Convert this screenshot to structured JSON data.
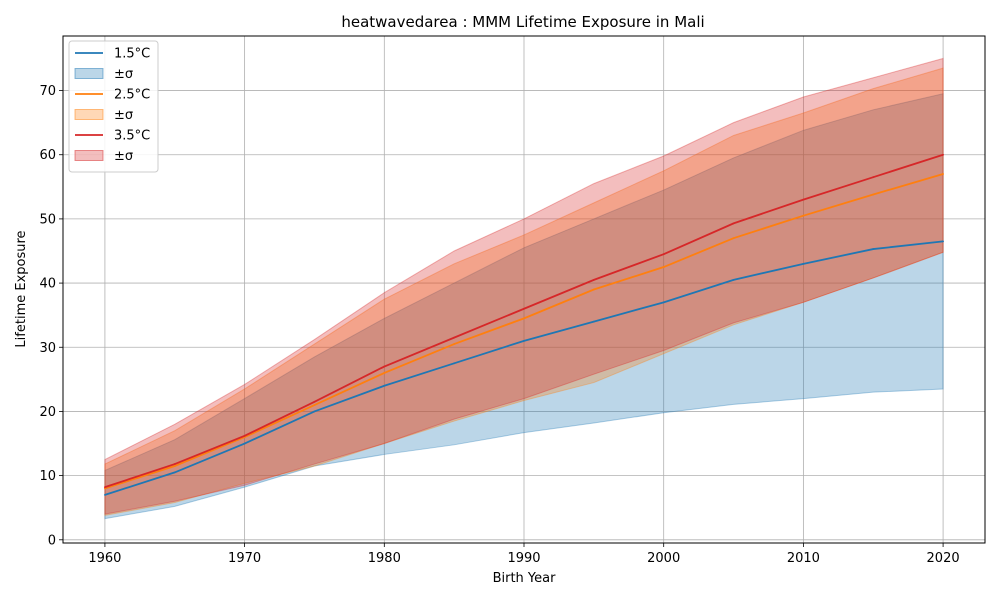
{
  "chart_data": {
    "type": "area",
    "title": "heatwavedarea : MMM Lifetime Exposure in Mali",
    "xlabel": "Birth Year",
    "ylabel": "Lifetime Exposure",
    "xlim": [
      1957,
      2023
    ],
    "ylim": [
      -0.5,
      78.5
    ],
    "xticks": [
      1960,
      1970,
      1980,
      1990,
      2000,
      2010,
      2020
    ],
    "yticks": [
      0,
      10,
      20,
      30,
      40,
      50,
      60,
      70
    ],
    "grid": true,
    "legend_position": "top-left",
    "x": [
      1960,
      1965,
      1970,
      1975,
      1980,
      1985,
      1990,
      1995,
      2000,
      2005,
      2010,
      2015,
      2020
    ],
    "series": [
      {
        "name": "1.5°C",
        "band_label": "±σ",
        "color": "#1f77b4",
        "band_color": "#1f77b4",
        "values": [
          7.0,
          10.5,
          15.0,
          20.0,
          24.0,
          27.5,
          31.0,
          34.0,
          37.0,
          40.5,
          43.0,
          45.3,
          46.5
        ],
        "lower": [
          3.3,
          5.2,
          8.2,
          11.5,
          13.3,
          14.8,
          16.7,
          18.2,
          19.8,
          21.1,
          22.0,
          23.0,
          23.5
        ],
        "upper": [
          10.8,
          15.6,
          22.0,
          28.5,
          34.5,
          40.0,
          45.5,
          50.0,
          54.5,
          59.5,
          63.8,
          67.0,
          69.5
        ]
      },
      {
        "name": "2.5°C",
        "band_label": "±σ",
        "color": "#ff7f0e",
        "band_color": "#ff7f0e",
        "values": [
          8.0,
          11.5,
          16.0,
          21.0,
          26.0,
          30.5,
          34.5,
          39.0,
          42.5,
          47.0,
          50.5,
          53.8,
          57.0
        ],
        "lower": [
          3.8,
          5.8,
          8.8,
          11.5,
          15.0,
          18.5,
          21.7,
          24.5,
          29.0,
          33.5,
          37.0,
          40.8,
          44.8
        ],
        "upper": [
          11.8,
          17.0,
          23.5,
          30.5,
          37.5,
          43.0,
          47.5,
          52.5,
          57.5,
          63.0,
          66.5,
          70.3,
          73.5
        ]
      },
      {
        "name": "3.5°C",
        "band_label": "±σ",
        "color": "#d62728",
        "band_color": "#d62728",
        "values": [
          8.2,
          11.8,
          16.2,
          21.5,
          27.0,
          31.5,
          36.0,
          40.5,
          44.5,
          49.3,
          53.0,
          56.5,
          60.0
        ],
        "lower": [
          4.0,
          6.0,
          8.5,
          11.8,
          15.0,
          18.8,
          22.0,
          25.8,
          29.5,
          33.8,
          37.0,
          40.8,
          44.8
        ],
        "upper": [
          12.5,
          18.0,
          24.2,
          31.2,
          38.5,
          45.0,
          50.0,
          55.5,
          59.8,
          65.0,
          69.0,
          72.0,
          75.0
        ]
      }
    ]
  }
}
